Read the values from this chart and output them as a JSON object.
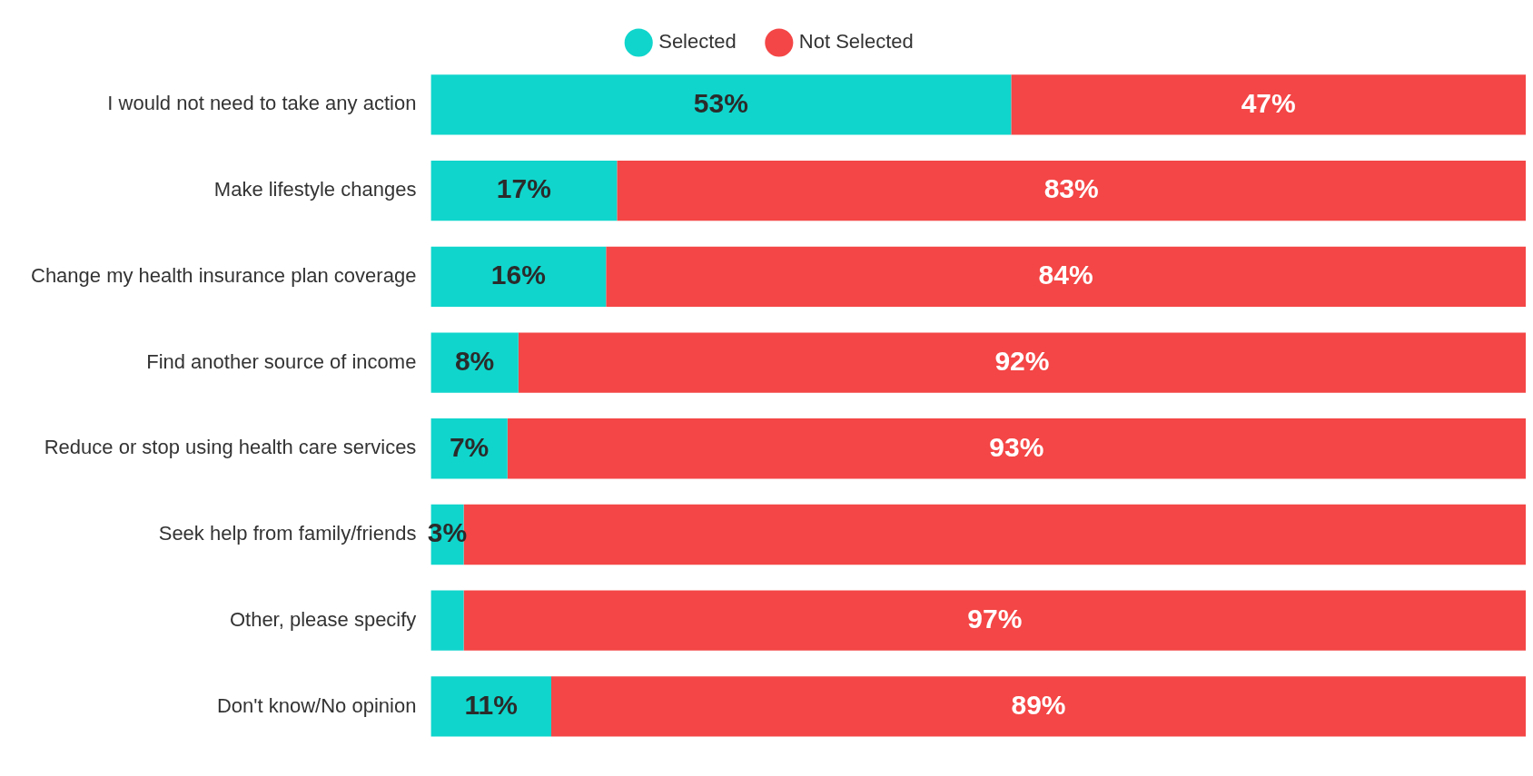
{
  "chart_data": {
    "type": "bar",
    "orientation": "horizontal",
    "stacked": true,
    "categories": [
      "I would not need to take any action",
      "Make lifestyle changes",
      "Change my health insurance plan coverage",
      "Find another source of income",
      "Reduce or stop using health care services",
      "Seek help from family/friends",
      "Other, please specify",
      "Don't know/No opinion"
    ],
    "series": [
      {
        "name": "Selected",
        "color": "#10d5cc",
        "values": [
          53,
          17,
          16,
          8,
          7,
          3,
          3,
          11
        ],
        "value_labels": [
          "53%",
          "17%",
          "16%",
          "8%",
          "7%",
          "3%",
          null,
          "11%"
        ]
      },
      {
        "name": "Not Selected",
        "color": "#f44646",
        "values": [
          47,
          83,
          84,
          92,
          93,
          97,
          97,
          89
        ],
        "value_labels": [
          "47%",
          "83%",
          "84%",
          "92%",
          "93%",
          null,
          "97%",
          "89%"
        ]
      }
    ],
    "xlim": [
      0,
      100
    ],
    "tick_labels": "y",
    "legend": "top"
  }
}
